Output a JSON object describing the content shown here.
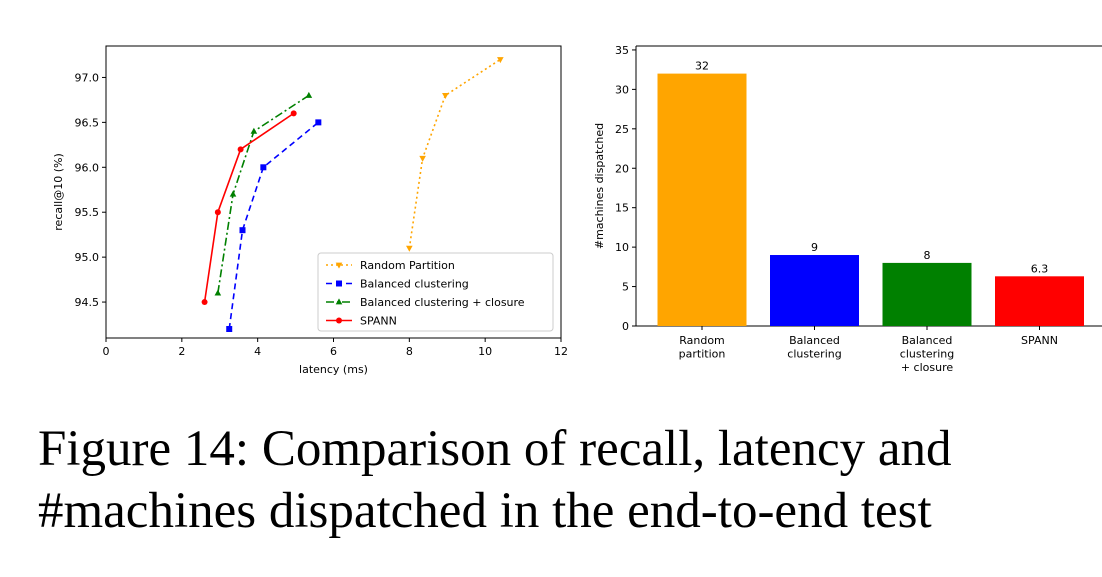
{
  "caption": {
    "line1": "Figure 14: Comparison of recall, latency and",
    "line2": "#machines dispatched in the end-to-end test"
  },
  "chart_data": [
    {
      "type": "line",
      "xlabel": "latency (ms)",
      "ylabel": "recall@10 (%)",
      "xlim": [
        0,
        12
      ],
      "ylim": [
        94.1,
        97.35
      ],
      "xticks": [
        0,
        2,
        4,
        6,
        8,
        10,
        12
      ],
      "yticks": [
        94.5,
        95.0,
        95.5,
        96.0,
        96.5,
        97.0
      ],
      "ytick_labels": [
        "94.5",
        "95.0",
        "95.5",
        "96.0",
        "96.5",
        "97.0"
      ],
      "grid": false,
      "legend_position": "lower-right",
      "series": [
        {
          "name": "Random Partition",
          "color": "#ffa500",
          "dash": "dotted",
          "marker": "triangle-down",
          "x": [
            8.0,
            8.35,
            8.95,
            10.4
          ],
          "y": [
            95.1,
            96.1,
            96.8,
            97.2
          ]
        },
        {
          "name": "Balanced clustering",
          "color": "#0000ff",
          "dash": "dashed",
          "marker": "square",
          "x": [
            3.25,
            3.6,
            4.15,
            5.6
          ],
          "y": [
            94.2,
            95.3,
            96.0,
            96.5
          ]
        },
        {
          "name": "Balanced clustering + closure",
          "color": "#008000",
          "dash": "dashdot",
          "marker": "triangle-up",
          "x": [
            2.95,
            3.35,
            3.9,
            5.35
          ],
          "y": [
            94.6,
            95.7,
            96.4,
            96.8
          ]
        },
        {
          "name": "SPANN",
          "color": "#ff0000",
          "dash": "solid",
          "marker": "circle",
          "x": [
            2.6,
            2.95,
            3.55,
            4.95
          ],
          "y": [
            94.5,
            95.5,
            96.2,
            96.6
          ]
        }
      ]
    },
    {
      "type": "bar",
      "ylabel": "#machines dispatched",
      "ylim": [
        0,
        35.5
      ],
      "yticks": [
        0,
        5,
        10,
        15,
        20,
        25,
        30,
        35
      ],
      "categories": [
        [
          "Random",
          "partition"
        ],
        [
          "Balanced",
          "clustering"
        ],
        [
          "Balanced",
          "clustering",
          "+ closure"
        ],
        [
          "SPANN"
        ]
      ],
      "values": [
        32,
        9,
        8,
        6.3
      ],
      "data_labels": [
        "32",
        "9",
        "8",
        "6.3"
      ],
      "colors": [
        "#ffa500",
        "#0000ff",
        "#008000",
        "#ff0000"
      ]
    }
  ]
}
